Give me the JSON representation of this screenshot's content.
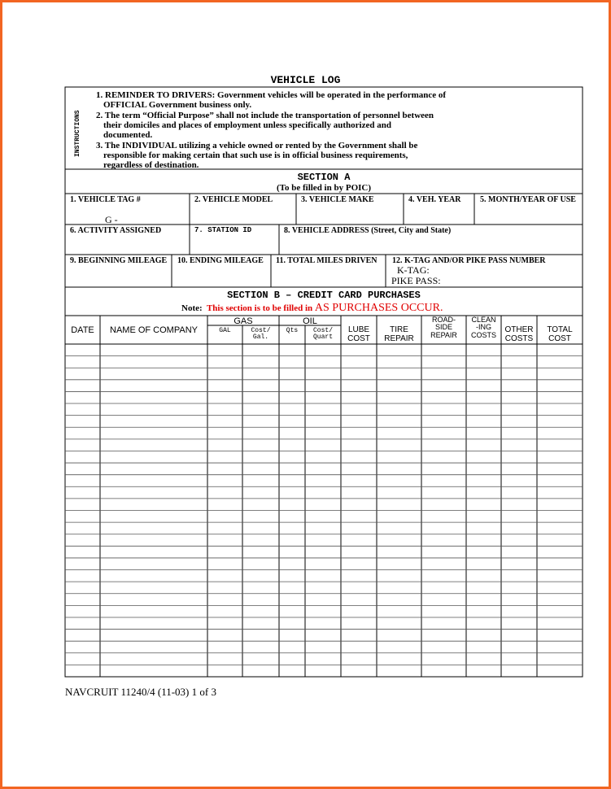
{
  "title": "VEHICLE LOG",
  "instructions": {
    "label": "INSTRUCTIONS",
    "lines": [
      "1. REMINDER TO DRIVERS:  Government vehicles will be operated in the performance of",
      "OFFICIAL Government business only.",
      "2. The term “Official Purpose” shall not include the transportation of personnel between",
      "their domiciles and places of employment unless specifically authorized and",
      "documented.",
      "3. The INDIVIDUAL utilizing a vehicle owned or rented by the Government shall be",
      "responsible for making certain that such use is in official business requirements,",
      "regardless of destination."
    ]
  },
  "section_a": {
    "title": "SECTION A",
    "subtitle": "(To be filled in by POIC)",
    "fields": [
      "1. VEHICLE TAG #",
      "2. VEHICLE MODEL",
      "3. VEHICLE MAKE",
      "4. VEH. YEAR",
      "5. MONTH/YEAR OF USE",
      "6. ACTIVITY ASSIGNED",
      "7. STATION ID",
      "8. VEHICLE ADDRESS (Street, City and State)",
      "9. BEGINNING MILEAGE",
      "10. ENDING MILEAGE",
      "11. TOTAL MILES DRIVEN",
      "12. K-TAG AND/OR PIKE PASS NUMBER"
    ],
    "vehicle_tag_value": "G   -",
    "k_tag": "K-TAG:",
    "pike_pass": "PIKE PASS:"
  },
  "section_b": {
    "title": "SECTION B – CREDIT CARD PURCHASES",
    "note_label": "Note:",
    "note_text": "This section is to be filled in",
    "note_emphasis": "AS PURCHASES OCCUR.",
    "groups": [
      "GAS",
      "OIL"
    ],
    "columns": [
      [
        "DATE"
      ],
      [
        "NAME OF COMPANY"
      ],
      [
        "GAL"
      ],
      [
        "Cost/",
        "Gal."
      ],
      [
        "Qts"
      ],
      [
        "Cost/",
        "Quart"
      ],
      [
        "LUBE",
        "COST"
      ],
      [
        "TIRE",
        "REPAIR"
      ],
      [
        "ROAD-",
        "SIDE",
        "REPAIR"
      ],
      [
        "CLEAN",
        "-ING",
        "COSTS"
      ],
      [
        "OTHER",
        "COSTS"
      ],
      [
        "TOTAL",
        "COST"
      ]
    ]
  },
  "footer": "NAVCRUIT 11240/4 (11-03)   1 of 3"
}
